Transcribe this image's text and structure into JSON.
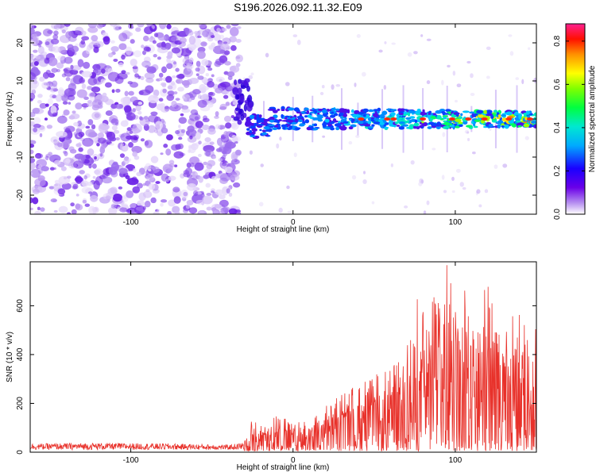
{
  "title": "S196.2026.092.11.32.E09",
  "colors": {
    "snr_line": "#e8312a",
    "axis": "#000000"
  },
  "chart_data": [
    {
      "type": "heatmap",
      "name": "spectrogram",
      "xlabel": "Height of straight line (km)",
      "ylabel": "Frequency (Hz)",
      "xlim": [
        -162,
        150
      ],
      "ylim": [
        -25,
        25
      ],
      "x_ticks": [
        -100,
        0,
        100
      ],
      "y_ticks": [
        -20,
        -10,
        0,
        10,
        20
      ],
      "colorbar": {
        "label": "Normalized spectral amplitude",
        "range": [
          0.0,
          0.88
        ],
        "ticks": [
          "0.0",
          "0.2",
          "0.4",
          "0.6",
          "0.8"
        ],
        "colormap": "rainbow"
      }
    },
    {
      "type": "line",
      "name": "snr",
      "xlabel": "Height of straight line (km)",
      "ylabel": "SNR (10 * v/v)",
      "xlim": [
        -162,
        150
      ],
      "ylim": [
        0,
        780
      ],
      "x_ticks": [
        -100,
        0,
        100
      ],
      "y_ticks": [
        0,
        200,
        400,
        600
      ],
      "color": "#e8312a",
      "envelope": {
        "x": [
          -162,
          -120,
          -80,
          -40,
          -30,
          -25,
          -20,
          -10,
          0,
          10,
          20,
          30,
          40,
          50,
          60,
          70,
          75,
          80,
          90,
          95,
          100,
          110,
          120,
          130,
          140,
          150
        ],
        "y": [
          35,
          38,
          36,
          30,
          40,
          170,
          110,
          160,
          120,
          150,
          200,
          240,
          280,
          320,
          340,
          420,
          680,
          610,
          720,
          780,
          700,
          640,
          700,
          560,
          660,
          520
        ]
      }
    }
  ]
}
